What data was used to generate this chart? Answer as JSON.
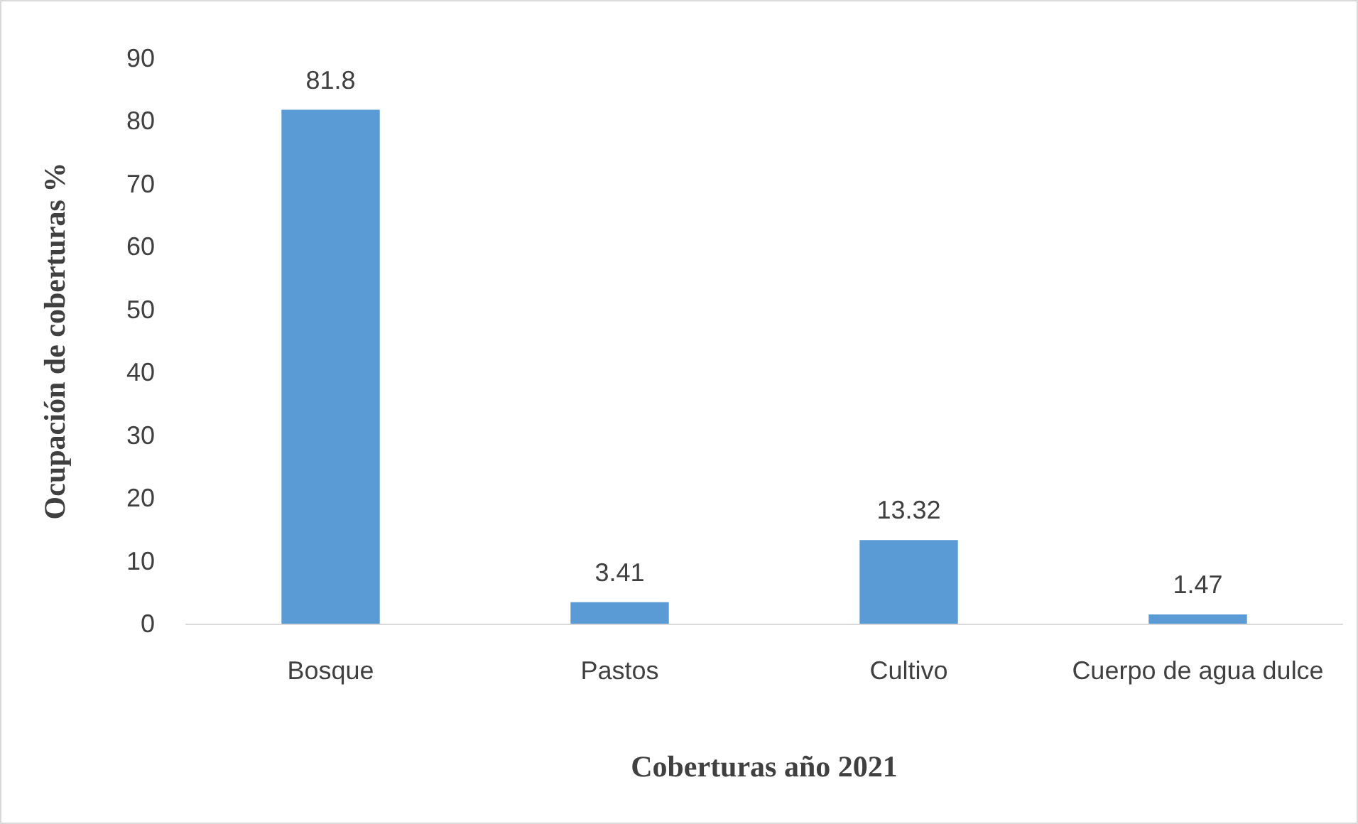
{
  "chart_data": {
    "type": "bar",
    "xlabel": "Coberturas año 2021",
    "ylabel": "Ocupación de coberturas %",
    "categories": [
      "Bosque",
      "Pastos",
      "Cultivo",
      "Cuerpo de agua dulce"
    ],
    "values": [
      81.8,
      3.41,
      13.32,
      1.47
    ],
    "color": "#5b9bd5",
    "ylim": [
      0,
      90
    ],
    "yticks": [
      0,
      10,
      20,
      30,
      40,
      50,
      60,
      70,
      80,
      90
    ],
    "grid": false,
    "data_labels": true
  }
}
